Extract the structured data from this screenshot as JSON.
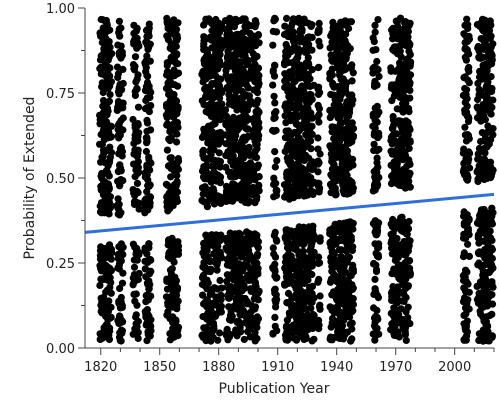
{
  "chart_data": {
    "type": "scatter",
    "title": "",
    "xlabel": "Publication Year",
    "ylabel": "Probability of Extended",
    "xlim": [
      1812,
      2020
    ],
    "ylim": [
      0,
      1
    ],
    "xticks": [
      1820,
      1850,
      1880,
      1910,
      1940,
      1970,
      2000
    ],
    "xtick_labels": [
      "1820",
      "1850",
      "1880",
      "1910",
      "1940",
      "1970",
      "2000"
    ],
    "yticks": [
      0,
      0.25,
      0.5,
      0.75,
      1
    ],
    "ytick_labels": [
      "0.00",
      "0.25",
      "0.50",
      "0.75",
      "1.00"
    ],
    "grid": false,
    "legend": "none",
    "point_color": "#000000",
    "fit_line_color": "#2e6fd8",
    "fit_line": {
      "x": [
        1812,
        2020
      ],
      "y": [
        0.34,
        0.452
      ]
    },
    "point_years": [
      1820,
      1821,
      1822,
      1823,
      1824,
      1825,
      1829,
      1830,
      1831,
      1837,
      1838,
      1839,
      1843,
      1844,
      1845,
      1854,
      1855,
      1856,
      1857,
      1858,
      1859,
      1872,
      1873,
      1874,
      1875,
      1876,
      1877,
      1878,
      1879,
      1880,
      1881,
      1884,
      1885,
      1886,
      1887,
      1888,
      1889,
      1890,
      1891,
      1892,
      1893,
      1894,
      1895,
      1896,
      1898,
      1899,
      1900,
      1908,
      1909,
      1914,
      1915,
      1916,
      1917,
      1918,
      1919,
      1920,
      1921,
      1922,
      1923,
      1924,
      1925,
      1926,
      1927,
      1928,
      1931,
      1937,
      1938,
      1939,
      1940,
      1941,
      1942,
      1943,
      1944,
      1945,
      1946,
      1947,
      1948,
      1959,
      1960,
      1961,
      1968,
      1969,
      1970,
      1971,
      1972,
      1973,
      1974,
      1975,
      1976,
      1977,
      2005,
      2006,
      2007,
      2012,
      2013,
      2014,
      2015,
      2016,
      2017,
      2018,
      2019
    ]
  }
}
